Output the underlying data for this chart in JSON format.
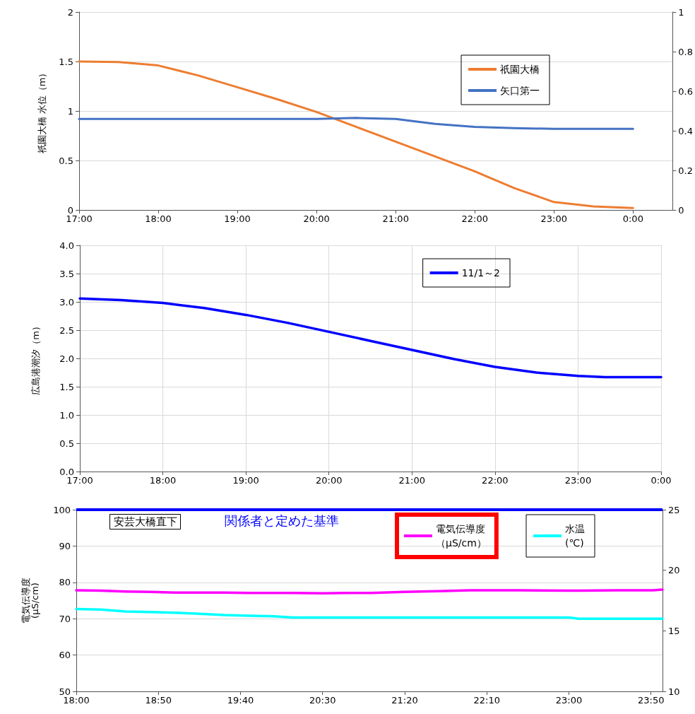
{
  "chart_data": [
    {
      "type": "line",
      "ylabel": "祇園大橋 水位（m）",
      "x": [
        17,
        17.5,
        18,
        18.5,
        19,
        19.5,
        20,
        20.5,
        21,
        21.5,
        22,
        22.5,
        23,
        23.5,
        24
      ],
      "series": [
        {
          "name": "祇園大橋",
          "color": "#ed7d31",
          "values": [
            1.5,
            1.495,
            1.46,
            1.36,
            1.24,
            1.12,
            0.99,
            0.84,
            0.69,
            0.54,
            0.39,
            0.22,
            0.08,
            0.035,
            0.02
          ]
        },
        {
          "name": "矢口第一",
          "color": "#4472c4",
          "axis": "y2",
          "values": [
            0.46,
            0.46,
            0.46,
            0.46,
            0.46,
            0.46,
            0.46,
            0.465,
            0.46,
            0.435,
            0.42,
            0.413,
            0.41,
            0.41,
            0.41
          ]
        }
      ],
      "xlim": [
        17,
        24.5
      ],
      "xticks": [
        {
          "value": 17,
          "label": "17:00"
        },
        {
          "value": 18,
          "label": "18:00"
        },
        {
          "value": 19,
          "label": "19:00"
        },
        {
          "value": 20,
          "label": "20:00"
        },
        {
          "value": 21,
          "label": "21:00"
        },
        {
          "value": 22,
          "label": "22:00"
        },
        {
          "value": 23,
          "label": "23:00"
        },
        {
          "value": 24,
          "label": "0:00"
        }
      ],
      "ylim": [
        0,
        2
      ],
      "yticks": [
        0,
        0.5,
        1,
        1.5,
        2
      ],
      "y2lim": [
        0,
        1
      ],
      "y2ticks": [
        0,
        0.2,
        0.4,
        0.6,
        0.8,
        1
      ],
      "grid": "y",
      "legend": "top right",
      "marker": "none",
      "line_style": "solid"
    },
    {
      "type": "line",
      "ylabel": "広島港潮汐（m）",
      "x": [
        17,
        17.5,
        18,
        18.5,
        19,
        19.5,
        20,
        20.5,
        21,
        21.5,
        22,
        22.5,
        23,
        23.33,
        23.5,
        24
      ],
      "series": [
        {
          "name": "11/1～2",
          "color": "#0000ff",
          "values": [
            3.06,
            3.03,
            2.98,
            2.89,
            2.77,
            2.63,
            2.47,
            2.31,
            2.15,
            1.99,
            1.85,
            1.75,
            1.69,
            1.67,
            1.67,
            1.67
          ]
        }
      ],
      "xlim": [
        17,
        24
      ],
      "xticks": [
        {
          "value": 17,
          "label": "17:00"
        },
        {
          "value": 18,
          "label": "18:00"
        },
        {
          "value": 19,
          "label": "19:00"
        },
        {
          "value": 20,
          "label": "20:00"
        },
        {
          "value": 21,
          "label": "21:00"
        },
        {
          "value": 22,
          "label": "22:00"
        },
        {
          "value": 23,
          "label": "23:00"
        },
        {
          "value": 24,
          "label": "0:00"
        }
      ],
      "ylim": [
        0,
        4
      ],
      "yticks": [
        {
          "value": 0,
          "label": "0.0"
        },
        0.5,
        {
          "value": 1,
          "label": "1.0"
        },
        1.5,
        {
          "value": 2,
          "label": "2.0"
        },
        2.5,
        {
          "value": 3,
          "label": "3.0"
        },
        3.5,
        {
          "value": 4,
          "label": "4.0"
        }
      ],
      "grid": true,
      "legend": "top right",
      "marker": "none",
      "line_style": "solid"
    },
    {
      "type": "line",
      "ylabel": "電気伝導度\n(μS/cm)",
      "annotations": [
        "安芸大橋直下"
      ],
      "x": [
        18,
        18.25,
        18.5,
        18.75,
        19,
        19.25,
        19.5,
        19.75,
        20,
        20.2,
        20.5,
        20.75,
        21,
        21.33,
        21.67,
        22,
        22.5,
        23,
        23.1,
        23.5,
        23.85,
        23.95
      ],
      "series": [
        {
          "name": "電気伝導度（μS/cm）",
          "color": "#ff00ff",
          "values": [
            77.8,
            77.7,
            77.5,
            77.4,
            77.2,
            77.2,
            77.2,
            77.1,
            77.1,
            77.1,
            77,
            77.1,
            77.1,
            77.4,
            77.6,
            77.8,
            77.8,
            77.7,
            77.7,
            77.8,
            77.8,
            78
          ]
        },
        {
          "name": "水温(℃)",
          "color": "#00ffff",
          "axis": "y2",
          "values": [
            16.8,
            16.75,
            16.6,
            16.55,
            16.5,
            16.4,
            16.3,
            16.25,
            16.2,
            16.1,
            16.1,
            16.1,
            16.1,
            16.1,
            16.1,
            16.1,
            16.1,
            16.1,
            16,
            16,
            16,
            16
          ]
        }
      ],
      "xlim": [
        18,
        23.95
      ],
      "xticks": [
        {
          "value": 18,
          "label": "18:00"
        },
        {
          "value": 18.8333,
          "label": "18:50"
        },
        {
          "value": 19.6667,
          "label": "19:40"
        },
        {
          "value": 20.5,
          "label": "20:30"
        },
        {
          "value": 21.3333,
          "label": "21:20"
        },
        {
          "value": 22.1667,
          "label": "22:10"
        },
        {
          "value": 23,
          "label": "23:00"
        },
        {
          "value": 23.8333,
          "label": "23:50"
        }
      ],
      "ylim": [
        50,
        100
      ],
      "yticks": [
        50,
        60,
        70,
        80,
        90,
        100
      ],
      "y2lim": [
        10,
        25
      ],
      "y2ticks": [
        10,
        15,
        20,
        25
      ],
      "ref_lines": [
        {
          "axis": "y",
          "value": 100,
          "label": "関係者と定めた基準",
          "color": "#0000ff",
          "line_style": "solid"
        }
      ],
      "grid": "y",
      "legend": "top right",
      "marker": "none",
      "line_style": "solid"
    }
  ]
}
